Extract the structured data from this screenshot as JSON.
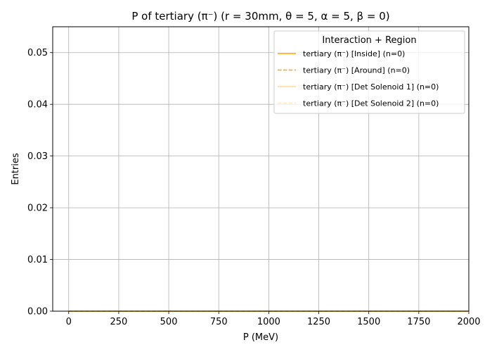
{
  "chart_data": {
    "type": "line",
    "title": "P of tertiary (π⁻) (r = 30mm, θ = 5, α = 5, β = 0)",
    "xlabel": "P (MeV)",
    "ylabel": "Entries",
    "xlim": [
      -80,
      2000
    ],
    "ylim": [
      0,
      0.055
    ],
    "x_ticks": [
      0,
      250,
      500,
      750,
      1000,
      1250,
      1500,
      1750,
      2000
    ],
    "x_tick_labels": [
      "0",
      "250",
      "500",
      "750",
      "1000",
      "1250",
      "1500",
      "1750",
      "2000"
    ],
    "y_ticks": [
      0,
      0.01,
      0.02,
      0.03,
      0.04,
      0.05
    ],
    "y_tick_labels": [
      "0.00",
      "0.01",
      "0.02",
      "0.03",
      "0.04",
      "0.05"
    ],
    "grid": true,
    "legend": {
      "title": "Interaction + Region",
      "placement": "top-right"
    },
    "series": [
      {
        "name": "tertiary (π⁻) [Inside] (n=0)",
        "color": "#ffa500",
        "dash": "solid",
        "opacity": 1.0,
        "x": [
          0,
          2000
        ],
        "y": [
          0,
          0
        ]
      },
      {
        "name": "tertiary (π⁻) [Around] (n=0)",
        "color": "#ffa500",
        "dash": "dashed",
        "opacity": 1.0,
        "x": [
          0,
          2000
        ],
        "y": [
          0,
          0
        ]
      },
      {
        "name": "tertiary (π⁻) [Det Solenoid 1] (n=0)",
        "color": "#ffa500",
        "dash": "solid",
        "opacity": 0.4,
        "x": [
          0,
          2000
        ],
        "y": [
          0,
          0
        ]
      },
      {
        "name": "tertiary (π⁻) [Det Solenoid 2] (n=0)",
        "color": "#ffa500",
        "dash": "dashed",
        "opacity": 0.25,
        "x": [
          0,
          2000
        ],
        "y": [
          0,
          0
        ]
      }
    ]
  }
}
